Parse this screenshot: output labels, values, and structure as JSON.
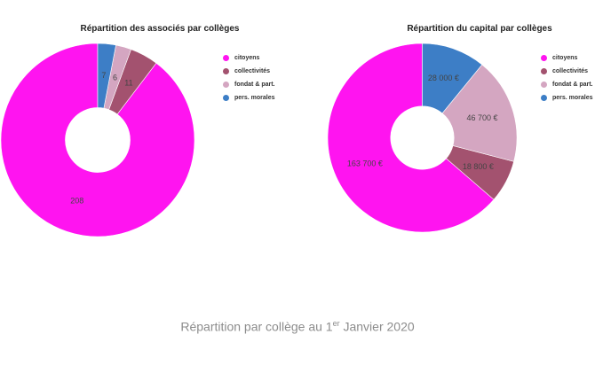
{
  "caption": {
    "text_before": "Répartition par collège au 1",
    "superscript": "er",
    "text_after": " Janvier 2020"
  },
  "legend_colors": {
    "citoyens": "#ff14f0",
    "collectivites": "#a3526f",
    "fondat": "#d4a6c1",
    "morales": "#3d7ec6"
  },
  "chart_data": [
    {
      "type": "pie",
      "title": "Répartition des associés par collèges",
      "categories": [
        "citoyens",
        "collectivités",
        "fondat & part.",
        "pers. morales"
      ],
      "values": [
        208,
        11,
        6,
        7
      ],
      "data_labels": [
        "208",
        "11",
        "6",
        "7"
      ],
      "colors": [
        "#ff14f0",
        "#a3526f",
        "#d4a6c1",
        "#3d7ec6"
      ],
      "legend_position": "right"
    },
    {
      "type": "pie",
      "title": "Répartition du capital par collèges",
      "categories": [
        "citoyens",
        "collectivités",
        "fondat & part.",
        "pers. morales"
      ],
      "values": [
        163700,
        18800,
        46700,
        28000
      ],
      "data_labels": [
        "163 700 €",
        "18 800 €",
        "46 700 €",
        "28 000 €"
      ],
      "colors": [
        "#ff14f0",
        "#a3526f",
        "#d4a6c1",
        "#3d7ec6"
      ],
      "legend_position": "right"
    }
  ]
}
